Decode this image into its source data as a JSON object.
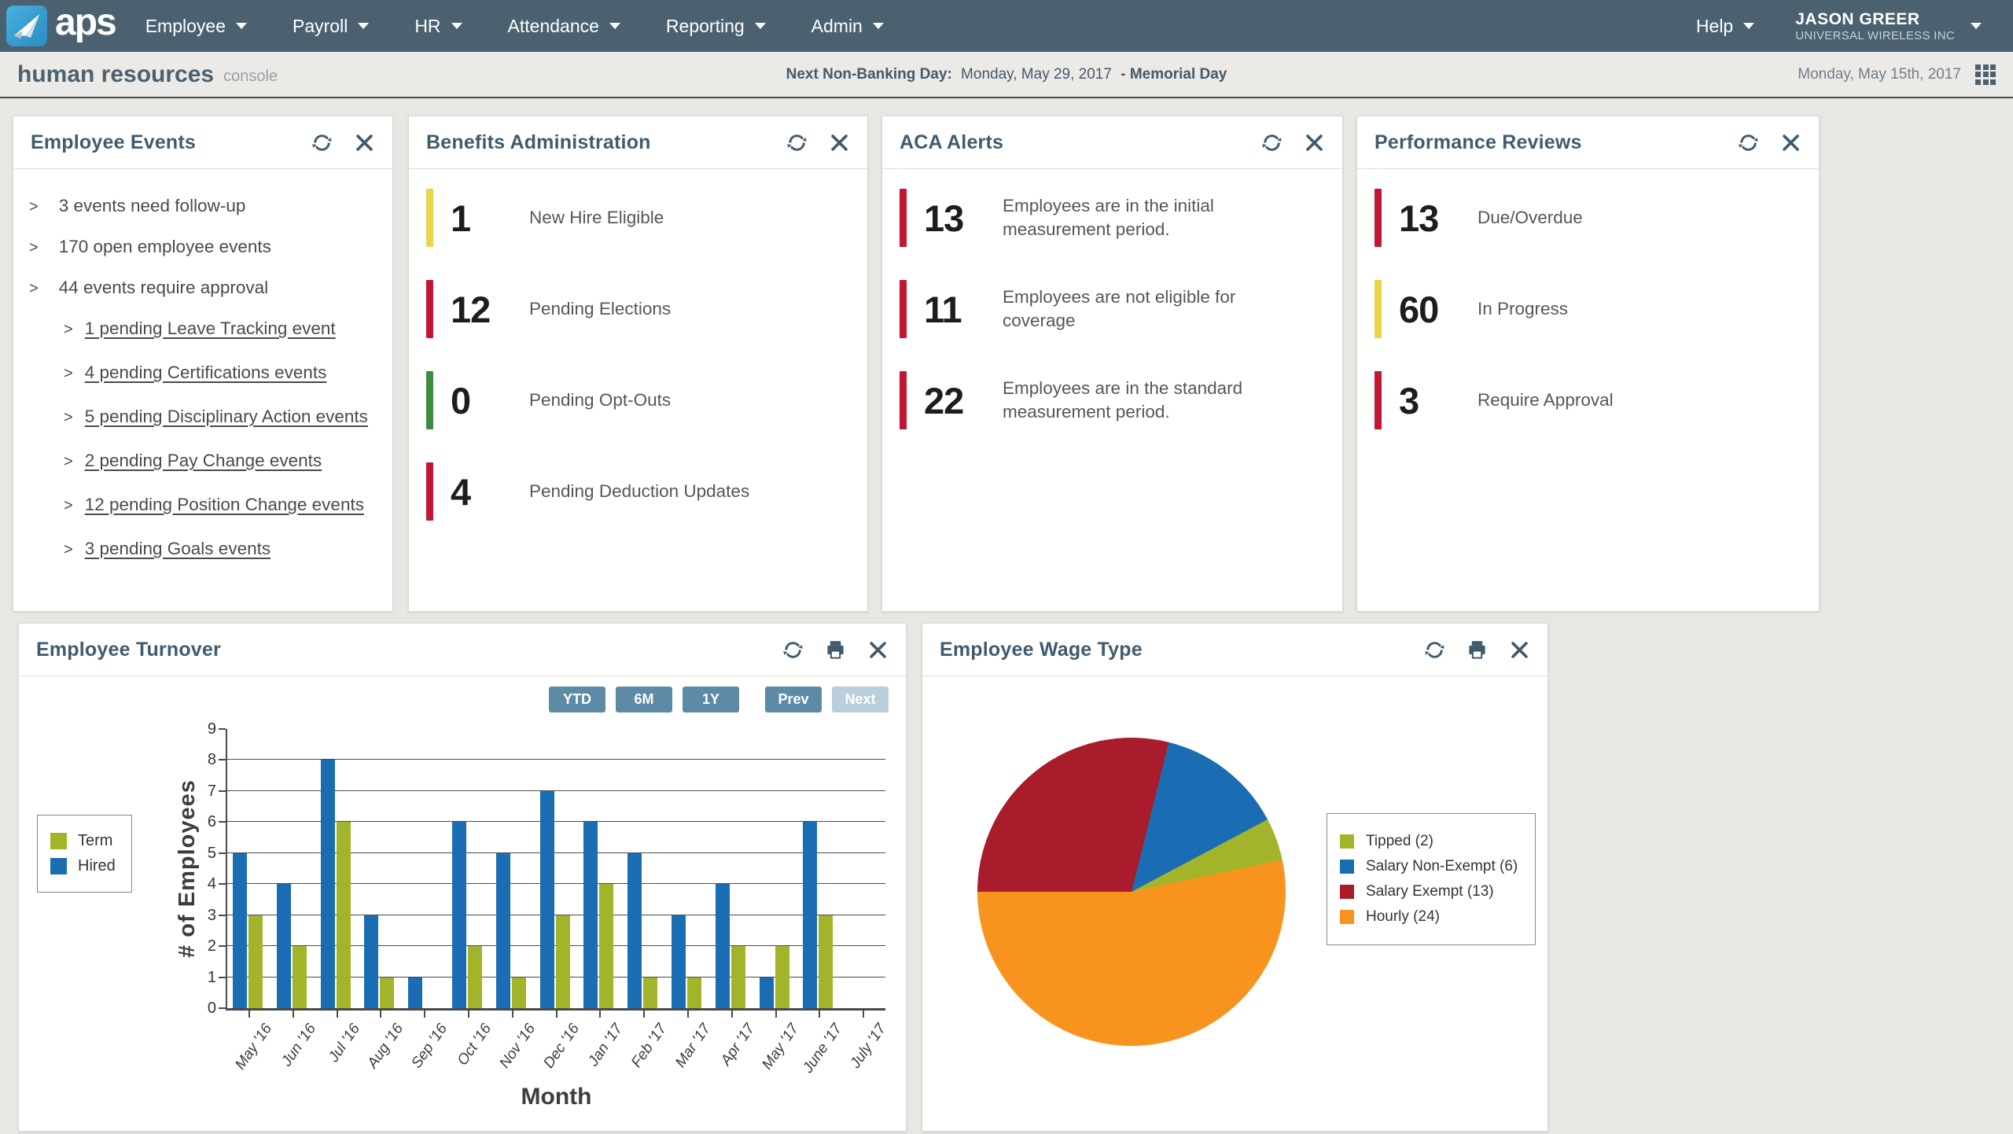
{
  "nav": {
    "brand": "aps",
    "items": [
      "Employee",
      "Payroll",
      "HR",
      "Attendance",
      "Reporting",
      "Admin"
    ],
    "help_label": "Help",
    "user": {
      "name": "JASON GREER",
      "company": "UNIVERSAL WIRELESS INC"
    }
  },
  "subheader": {
    "title": "human resources",
    "subtitle": "console",
    "banking": {
      "label": "Next Non-Banking Day:",
      "date": "Monday, May 29, 2017",
      "holiday": "- Memorial Day"
    },
    "current_date": "Monday, May 15th, 2017"
  },
  "icons": {
    "refresh": "circular-arrows",
    "print": "printer",
    "close": "x-cross",
    "caret": "triangle-down",
    "grid": "3x3-grid",
    "chevron": ">"
  },
  "status_colors": {
    "red": "#C21734",
    "yellow": "#E9D44A",
    "green": "#3E8B41"
  },
  "cards": {
    "employee_events": {
      "title": "Employee Events",
      "items": [
        {
          "text": "3 events need follow-up",
          "sub": false
        },
        {
          "text": "170 open employee events",
          "sub": false
        },
        {
          "text": "44 events require approval",
          "sub": false
        },
        {
          "text": "1 pending Leave Tracking event",
          "sub": true
        },
        {
          "text": "4 pending Certifications events",
          "sub": true
        },
        {
          "text": "5 pending Disciplinary Action events",
          "sub": true
        },
        {
          "text": "2 pending Pay Change events",
          "sub": true
        },
        {
          "text": "12 pending Position Change events",
          "sub": true
        },
        {
          "text": "3 pending Goals events",
          "sub": true
        }
      ]
    },
    "benefits": {
      "title": "Benefits Administration",
      "rows": [
        {
          "value": "1",
          "label": "New Hire Eligible",
          "color": "#E9D44A"
        },
        {
          "value": "12",
          "label": "Pending Elections",
          "color": "#C21734"
        },
        {
          "value": "0",
          "label": "Pending Opt-Outs",
          "color": "#3E8B41"
        },
        {
          "value": "4",
          "label": "Pending Deduction Updates",
          "color": "#C21734"
        }
      ]
    },
    "aca": {
      "title": "ACA Alerts",
      "rows": [
        {
          "value": "13",
          "label": "Employees are in the initial measurement period.",
          "color": "#C21734"
        },
        {
          "value": "11",
          "label": "Employees are not eligible for coverage",
          "color": "#C21734"
        },
        {
          "value": "22",
          "label": "Employees are in the standard measurement period.",
          "color": "#C21734"
        }
      ]
    },
    "performance": {
      "title": "Performance Reviews",
      "rows": [
        {
          "value": "13",
          "label": "Due/Overdue",
          "color": "#C21734"
        },
        {
          "value": "60",
          "label": "In Progress",
          "color": "#E9D44A"
        },
        {
          "value": "3",
          "label": "Require Approval",
          "color": "#C21734"
        }
      ]
    },
    "turnover": {
      "title": "Employee Turnover",
      "ranges": [
        "YTD",
        "6M",
        "1Y"
      ],
      "prev_label": "Prev",
      "next_label": "Next"
    },
    "wage_type": {
      "title": "Employee Wage Type"
    }
  },
  "chart_data": [
    {
      "type": "bar",
      "title": "Employee Turnover",
      "categories": [
        "May '16",
        "Jun '16",
        "Jul '16",
        "Aug '16",
        "Sep '16",
        "Oct '16",
        "Nov '16",
        "Dec '16",
        "Jan '17",
        "Feb '17",
        "Mar '17",
        "Apr '17",
        "May '17",
        "June '17",
        "July '17"
      ],
      "series": [
        {
          "name": "Hired",
          "color": "#1B6DB3",
          "values": [
            5,
            4,
            8,
            3,
            1,
            6,
            5,
            7,
            6,
            5,
            3,
            4,
            1,
            6,
            0
          ]
        },
        {
          "name": "Term",
          "color": "#A3B42A",
          "values": [
            3,
            2,
            6,
            1,
            0,
            2,
            1,
            3,
            4,
            1,
            1,
            2,
            2,
            3,
            0
          ]
        }
      ],
      "legend": [
        {
          "label": "Term",
          "color": "#A3B42A"
        },
        {
          "label": "Hired",
          "color": "#1B6DB3"
        }
      ],
      "xlabel": "Month",
      "ylabel": "# of Employees",
      "ylim": [
        0,
        9
      ],
      "grid": true,
      "legend_position": "left"
    },
    {
      "type": "pie",
      "title": "Employee Wage Type",
      "labels": [
        "Tipped (2)",
        "Salary Non-Exempt (6)",
        "Salary Exempt (13)",
        "Hourly (24)"
      ],
      "values": [
        2,
        6,
        13,
        24
      ],
      "colors": [
        "#A3B42A",
        "#1B6DB3",
        "#A81C2B",
        "#F8941E"
      ],
      "legend_position": "right"
    }
  ]
}
